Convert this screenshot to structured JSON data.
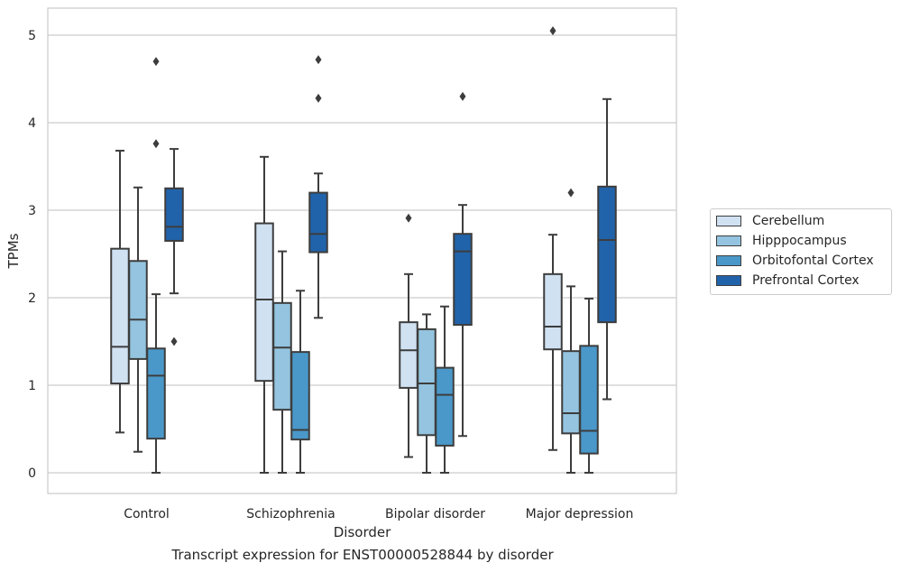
{
  "chart_data": {
    "type": "box",
    "xlabel": "Disorder",
    "ylabel": "TPMs",
    "caption": "Transcript expression for ENST00000528844 by disorder",
    "ylim": [
      -0.25,
      5.3
    ],
    "yticks": [
      0,
      1,
      2,
      3,
      4,
      5
    ],
    "grid": "horizontal",
    "legend_position": "right",
    "categories": [
      "Control",
      "Schizophrenia",
      "Bipolar disorder",
      "Major depression"
    ],
    "series": [
      {
        "name": "Cerebellum",
        "color": "#d0e1f2",
        "boxes": [
          {
            "min": 0.46,
            "q1": 1.02,
            "median": 1.44,
            "q3": 2.56,
            "max": 3.68,
            "outliers": []
          },
          {
            "min": 0.0,
            "q1": 1.05,
            "median": 1.98,
            "q3": 2.85,
            "max": 3.61,
            "outliers": []
          },
          {
            "min": 0.18,
            "q1": 0.97,
            "median": 1.4,
            "q3": 1.72,
            "max": 2.27,
            "outliers": [
              2.91
            ]
          },
          {
            "min": 0.26,
            "q1": 1.41,
            "median": 1.67,
            "q3": 2.27,
            "max": 2.72,
            "outliers": [
              5.05
            ]
          }
        ]
      },
      {
        "name": "Hipppocampus",
        "color": "#94c4df",
        "boxes": [
          {
            "min": 0.24,
            "q1": 1.3,
            "median": 1.75,
            "q3": 2.42,
            "max": 3.26,
            "outliers": []
          },
          {
            "min": 0.0,
            "q1": 0.72,
            "median": 1.43,
            "q3": 1.94,
            "max": 2.53,
            "outliers": []
          },
          {
            "min": 0.0,
            "q1": 0.43,
            "median": 1.02,
            "q3": 1.64,
            "max": 1.81,
            "outliers": []
          },
          {
            "min": 0.0,
            "q1": 0.45,
            "median": 0.68,
            "q3": 1.39,
            "max": 2.13,
            "outliers": [
              3.2
            ]
          }
        ]
      },
      {
        "name": "Orbitofontal Cortex",
        "color": "#4a98c9",
        "boxes": [
          {
            "min": 0.0,
            "q1": 0.39,
            "median": 1.11,
            "q3": 1.42,
            "max": 2.04,
            "outliers": [
              4.7,
              3.76
            ]
          },
          {
            "min": 0.0,
            "q1": 0.38,
            "median": 0.49,
            "q3": 1.38,
            "max": 2.08,
            "outliers": []
          },
          {
            "min": 0.0,
            "q1": 0.31,
            "median": 0.89,
            "q3": 1.2,
            "max": 1.9,
            "outliers": []
          },
          {
            "min": 0.0,
            "q1": 0.22,
            "median": 0.48,
            "q3": 1.45,
            "max": 1.99,
            "outliers": []
          }
        ]
      },
      {
        "name": "Prefrontal Cortex",
        "color": "#2163aa",
        "boxes": [
          {
            "min": 2.05,
            "q1": 2.65,
            "median": 2.81,
            "q3": 3.25,
            "max": 3.7,
            "outliers": [
              1.5
            ]
          },
          {
            "min": 1.77,
            "q1": 2.52,
            "median": 2.73,
            "q3": 3.2,
            "max": 3.42,
            "outliers": [
              4.72,
              4.28
            ]
          },
          {
            "min": 0.42,
            "q1": 1.69,
            "median": 2.53,
            "q3": 2.73,
            "max": 3.06,
            "outliers": [
              4.3
            ]
          },
          {
            "min": 0.84,
            "q1": 1.72,
            "median": 2.66,
            "q3": 3.27,
            "max": 4.27,
            "outliers": []
          }
        ]
      }
    ]
  }
}
